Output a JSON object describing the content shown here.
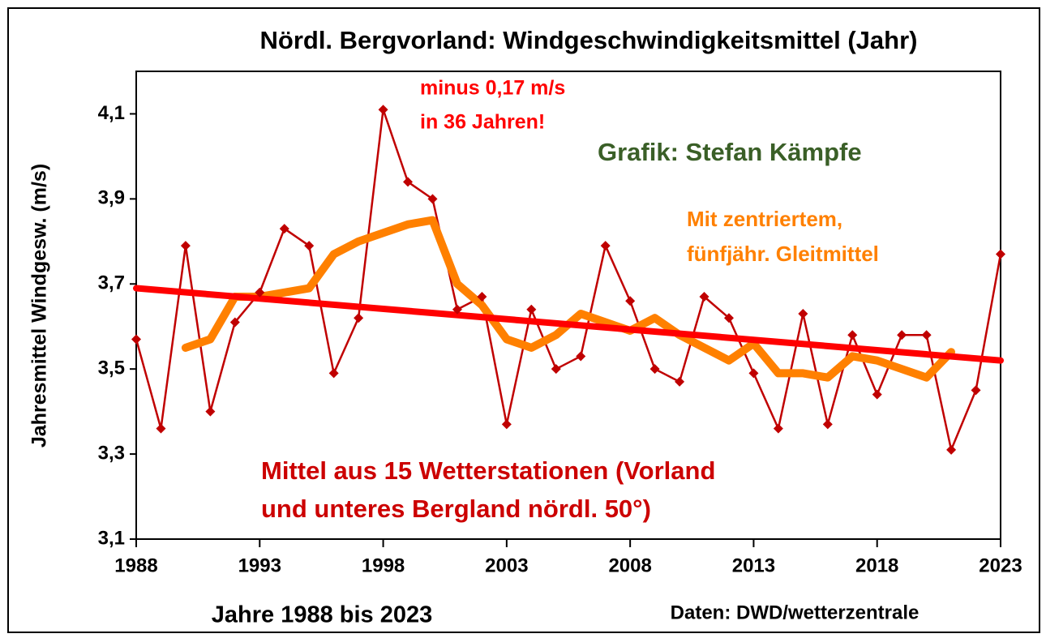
{
  "chart_data": {
    "type": "line",
    "title": "Nördl. Bergvorland: Windgeschwindigkeitsmittel (Jahr)",
    "y_label": "Jahresmittel Windgesw. (m/s)",
    "x_label": "Jahre 1988 bis 2023",
    "source": "Daten: DWD/wetterzentrale",
    "x": [
      1988,
      1989,
      1990,
      1991,
      1992,
      1993,
      1994,
      1995,
      1996,
      1997,
      1998,
      1999,
      2000,
      2001,
      2002,
      2003,
      2004,
      2005,
      2006,
      2007,
      2008,
      2009,
      2010,
      2011,
      2012,
      2013,
      2014,
      2015,
      2016,
      2017,
      2018,
      2019,
      2020,
      2021,
      2022,
      2023
    ],
    "series": [
      {
        "color": "#c00000",
        "marker": "diamond",
        "values": [
          3.57,
          3.36,
          3.79,
          3.4,
          3.61,
          3.68,
          3.83,
          3.79,
          3.49,
          3.62,
          4.11,
          3.94,
          3.9,
          3.64,
          3.67,
          3.37,
          3.64,
          3.5,
          3.53,
          3.79,
          3.66,
          3.5,
          3.47,
          3.67,
          3.62,
          3.49,
          3.36,
          3.63,
          3.37,
          3.58,
          3.44,
          3.58,
          3.58,
          3.31,
          3.45,
          3.77
        ]
      },
      {
        "color": "#ff8000",
        "values": [
          null,
          null,
          3.55,
          3.57,
          3.67,
          3.67,
          3.68,
          3.69,
          3.77,
          3.8,
          3.82,
          3.84,
          3.85,
          3.7,
          3.65,
          3.57,
          3.55,
          3.58,
          3.63,
          3.61,
          3.59,
          3.62,
          3.58,
          3.55,
          3.52,
          3.56,
          3.49,
          3.49,
          3.48,
          3.53,
          3.52,
          3.5,
          3.48,
          3.54,
          null,
          null
        ]
      }
    ],
    "trend": {
      "color": "#ff0000",
      "x": [
        1988,
        2023
      ],
      "values": [
        3.69,
        3.52
      ]
    },
    "annotations": [
      {
        "lines": [
          "minus 0,17 m/s",
          "in 36 Jahren!"
        ],
        "color": "#ff0000"
      },
      {
        "lines": [
          "Grafik: Stefan Kämpfe"
        ],
        "color": "#3a5f27"
      },
      {
        "lines": [
          "Mit zentriertem,",
          "fünfjähr. Gleitmittel"
        ],
        "color": "#ff8000"
      },
      {
        "lines": [
          "Mittel aus 15 Wetterstationen (Vorland",
          "und unteres Bergland nördl. 50°)"
        ],
        "color": "#cc0000"
      }
    ],
    "xlim": [
      1988,
      2023
    ],
    "xticks": [
      1988,
      1993,
      1998,
      2003,
      2008,
      2013,
      2018,
      2023
    ],
    "ylim": [
      3.1,
      4.2
    ],
    "yticks": [
      {
        "value": 3.1,
        "label": "3,1"
      },
      {
        "value": 3.3,
        "label": "3,3"
      },
      {
        "value": 3.5,
        "label": "3,5"
      },
      {
        "value": 3.7,
        "label": "3,7"
      },
      {
        "value": 3.9,
        "label": "3,9"
      },
      {
        "value": 4.1,
        "label": "4,1"
      }
    ],
    "grid": false
  }
}
